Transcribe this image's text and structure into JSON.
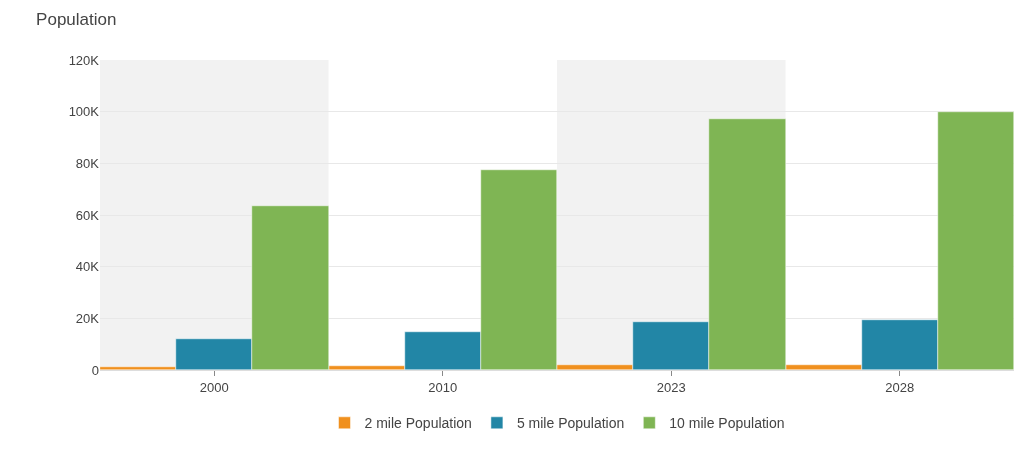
{
  "chart_data": {
    "type": "bar",
    "title": "Population",
    "categories": [
      "2000",
      "2010",
      "2023",
      "2028"
    ],
    "series": [
      {
        "name": "2 mile Population",
        "color": "#f0901e",
        "values": [
          1000,
          1400,
          1900,
          2000
        ]
      },
      {
        "name": "5 mile Population",
        "color": "#2286a6",
        "values": [
          11900,
          14600,
          18700,
          19300
        ]
      },
      {
        "name": "10 mile Population",
        "color": "#7fb554",
        "values": [
          63600,
          77500,
          97100,
          99900
        ]
      }
    ],
    "ylim": [
      0,
      120000
    ],
    "yticks": [
      {
        "value": 0,
        "label": "0"
      },
      {
        "value": 20000,
        "label": "20K"
      },
      {
        "value": 40000,
        "label": "40K"
      },
      {
        "value": 60000,
        "label": "60K"
      },
      {
        "value": 80000,
        "label": "80K"
      },
      {
        "value": 100000,
        "label": "100K"
      },
      {
        "value": 120000,
        "label": "120K"
      }
    ],
    "bands": [
      {
        "axis": "x",
        "from": "2000",
        "to": "2000",
        "color": "#f2f2f2"
      },
      {
        "axis": "x",
        "from": "2023",
        "to": "2023",
        "color": "#f2f2f2"
      }
    ],
    "grid": "y",
    "legend": "bottom"
  }
}
